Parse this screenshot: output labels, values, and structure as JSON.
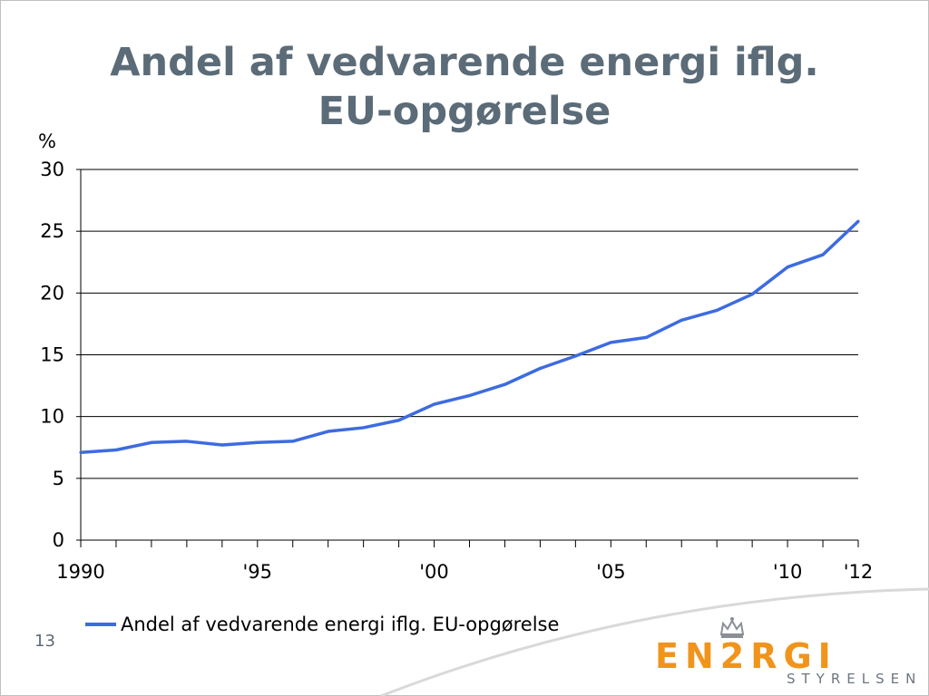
{
  "slide": {
    "title_line1": "Andel af vedvarende energi iflg.",
    "title_line2": "EU-opgørelse",
    "page_number": "13"
  },
  "logo": {
    "word": "EN2RGI",
    "subtitle": "STYRELSEN",
    "color": "#f0941b"
  },
  "chart_data": {
    "type": "line",
    "ylabel": "%",
    "ylim": [
      0,
      30
    ],
    "yticks": [
      0,
      5,
      10,
      15,
      20,
      25,
      30
    ],
    "xlim": [
      1990,
      2012
    ],
    "xtick_labels": [
      {
        "year": 1990,
        "label": "1990"
      },
      {
        "year": 1995,
        "label": "'95"
      },
      {
        "year": 2000,
        "label": "'00"
      },
      {
        "year": 2005,
        "label": "'05"
      },
      {
        "year": 2010,
        "label": "'10"
      },
      {
        "year": 2012,
        "label": "'12"
      }
    ],
    "grid": true,
    "legend": "bottom-left",
    "x": [
      1990,
      1991,
      1992,
      1993,
      1994,
      1995,
      1996,
      1997,
      1998,
      1999,
      2000,
      2001,
      2002,
      2003,
      2004,
      2005,
      2006,
      2007,
      2008,
      2009,
      2010,
      2011,
      2012
    ],
    "series": [
      {
        "name": "Andel af vedvarende energi iflg. EU-opgørelse",
        "color": "#3d6be0",
        "values": [
          7.1,
          7.3,
          7.9,
          8.0,
          7.7,
          7.9,
          8.0,
          8.8,
          9.1,
          9.7,
          11.0,
          11.7,
          12.6,
          13.9,
          14.9,
          16.0,
          16.4,
          17.8,
          18.6,
          19.9,
          22.1,
          23.1,
          25.8
        ]
      }
    ]
  }
}
